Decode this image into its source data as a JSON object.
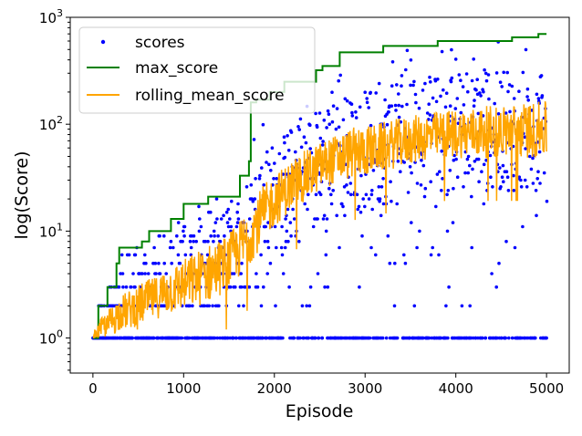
{
  "chart_data": {
    "type": "scatter",
    "title": "",
    "xlabel": "Episode",
    "ylabel": "log(Score)",
    "xlim": [
      -250,
      5250
    ],
    "ylim": [
      0.47,
      1000
    ],
    "yscale": "log",
    "grid": false,
    "legend_position": "top-left",
    "x_ticks": [
      0,
      1000,
      2000,
      3000,
      4000,
      5000
    ],
    "x_tick_labels": [
      "0",
      "1000",
      "2000",
      "3000",
      "4000",
      "5000"
    ],
    "y_ticks": [
      1,
      10,
      100,
      1000
    ],
    "y_tick_labels": [
      {
        "base": "10",
        "exp": "0"
      },
      {
        "base": "10",
        "exp": "1"
      },
      {
        "base": "10",
        "exp": "2"
      },
      {
        "base": "10",
        "exp": "3"
      }
    ],
    "series": [
      {
        "name": "scores",
        "kind": "scatter",
        "color": "#0000ff"
      },
      {
        "name": "max_score",
        "kind": "step-line",
        "color": "#008000",
        "points": [
          [
            0,
            1
          ],
          [
            60,
            1
          ],
          [
            60,
            2
          ],
          [
            160,
            2
          ],
          [
            160,
            3
          ],
          [
            260,
            3
          ],
          [
            260,
            5
          ],
          [
            290,
            5
          ],
          [
            290,
            7
          ],
          [
            540,
            7
          ],
          [
            540,
            8
          ],
          [
            620,
            8
          ],
          [
            620,
            10
          ],
          [
            860,
            10
          ],
          [
            860,
            13
          ],
          [
            1000,
            13
          ],
          [
            1000,
            18
          ],
          [
            1270,
            18
          ],
          [
            1270,
            21
          ],
          [
            1620,
            21
          ],
          [
            1620,
            33
          ],
          [
            1720,
            33
          ],
          [
            1720,
            45
          ],
          [
            1740,
            45
          ],
          [
            1740,
            160
          ],
          [
            1800,
            160
          ],
          [
            1800,
            170
          ],
          [
            1950,
            170
          ],
          [
            1950,
            200
          ],
          [
            2110,
            200
          ],
          [
            2110,
            250
          ],
          [
            2460,
            250
          ],
          [
            2460,
            320
          ],
          [
            2530,
            320
          ],
          [
            2530,
            350
          ],
          [
            2720,
            350
          ],
          [
            2720,
            470
          ],
          [
            3200,
            470
          ],
          [
            3200,
            540
          ],
          [
            3800,
            540
          ],
          [
            3800,
            600
          ],
          [
            4620,
            600
          ],
          [
            4620,
            650
          ],
          [
            4910,
            650
          ],
          [
            4910,
            700
          ],
          [
            5000,
            700
          ]
        ]
      },
      {
        "name": "rolling_mean_score",
        "kind": "line",
        "color": "#ffa500",
        "envelope": [
          [
            0,
            1.0,
            1.0
          ],
          [
            100,
            1.0,
            1.6
          ],
          [
            200,
            1.0,
            2.0
          ],
          [
            300,
            1.2,
            2.5
          ],
          [
            400,
            1.2,
            2.8
          ],
          [
            500,
            1.3,
            3.2
          ],
          [
            600,
            1.4,
            3.5
          ],
          [
            700,
            1.5,
            3.8
          ],
          [
            800,
            1.6,
            4.5
          ],
          [
            900,
            1.7,
            5.0
          ],
          [
            1000,
            1.8,
            5.5
          ],
          [
            1100,
            1.9,
            6.2
          ],
          [
            1200,
            2.0,
            7.0
          ],
          [
            1300,
            2.2,
            7.8
          ],
          [
            1400,
            2.5,
            8.5
          ],
          [
            1500,
            2.8,
            9.5
          ],
          [
            1600,
            3.5,
            12
          ],
          [
            1700,
            4.5,
            16
          ],
          [
            1800,
            6.0,
            22
          ],
          [
            1900,
            8.0,
            28
          ],
          [
            2000,
            11,
            34
          ],
          [
            2100,
            13,
            40
          ],
          [
            2200,
            16,
            48
          ],
          [
            2300,
            18,
            55
          ],
          [
            2400,
            20,
            60
          ],
          [
            2500,
            24,
            68
          ],
          [
            2600,
            26,
            75
          ],
          [
            2700,
            28,
            82
          ],
          [
            2800,
            30,
            90
          ],
          [
            2900,
            32,
            95
          ],
          [
            3000,
            33,
            98
          ],
          [
            3100,
            34,
            100
          ],
          [
            3200,
            36,
            105
          ],
          [
            3300,
            38,
            110
          ],
          [
            3400,
            40,
            115
          ],
          [
            3500,
            42,
            120
          ],
          [
            3600,
            44,
            124
          ],
          [
            3700,
            46,
            128
          ],
          [
            3800,
            47,
            132
          ],
          [
            3900,
            48,
            136
          ],
          [
            4000,
            48,
            140
          ],
          [
            4100,
            48,
            142
          ],
          [
            4200,
            48,
            145
          ],
          [
            4300,
            48,
            148
          ],
          [
            4400,
            48,
            150
          ],
          [
            4500,
            48,
            152
          ],
          [
            4600,
            48,
            155
          ],
          [
            4700,
            48,
            158
          ],
          [
            4800,
            48,
            160
          ],
          [
            4900,
            48,
            162
          ],
          [
            5000,
            48,
            165
          ]
        ]
      }
    ]
  }
}
